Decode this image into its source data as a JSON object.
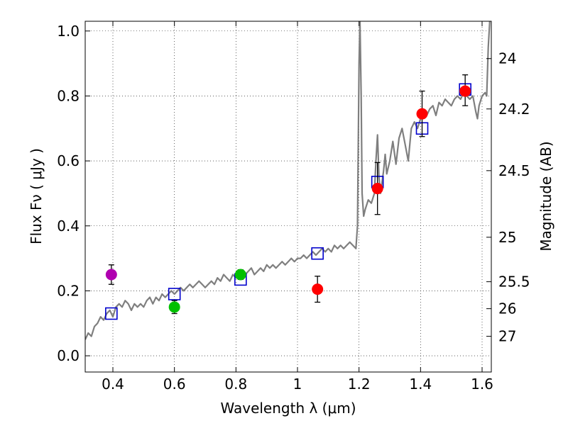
{
  "chart_data": {
    "type": "scatter",
    "title": "",
    "xlabel": "Wavelength  λ (μm)",
    "ylabel": "Flux  Fν  ( μJy )",
    "ylabel_right": "Magnitude (AB)",
    "xlim": [
      0.31,
      1.63
    ],
    "ylim": [
      -0.05,
      1.03
    ],
    "grid": true,
    "x_ticks": [
      0.4,
      0.6,
      0.8,
      1.0,
      1.2,
      1.4,
      1.6
    ],
    "x_tick_labels": [
      "0.4",
      "0.6",
      "0.8",
      "1",
      "1.2",
      "1.4",
      "1.6"
    ],
    "y_ticks": [
      0.0,
      0.2,
      0.4,
      0.6,
      0.8,
      1.0
    ],
    "y_tick_labels": [
      "0.0",
      "0.2",
      "0.4",
      "0.6",
      "0.8",
      "1.0"
    ],
    "right_ticks": [
      {
        "label": "24",
        "flux": 0.915
      },
      {
        "label": "24.2",
        "flux": 0.76
      },
      {
        "label": "24.5",
        "flux": 0.57
      },
      {
        "label": "25",
        "flux": 0.365
      },
      {
        "label": "25.5",
        "flux": 0.228
      },
      {
        "label": "26",
        "flux": 0.145
      },
      {
        "label": "27",
        "flux": 0.06
      }
    ],
    "colors": {
      "spectrum": "#7f7f7f",
      "model_square": "#0000cc",
      "purple": "#b000b0",
      "green": "#00c000",
      "red": "#ff0000",
      "errorbar": "#000000"
    },
    "series": [
      {
        "name": "observed-purple",
        "marker": "circle",
        "color": "#b000b0",
        "points": [
          {
            "x": 0.395,
            "y": 0.25,
            "ylo": 0.22,
            "yhi": 0.28
          }
        ]
      },
      {
        "name": "observed-green",
        "marker": "circle",
        "color": "#00c000",
        "points": [
          {
            "x": 0.6,
            "y": 0.15,
            "ylo": 0.13,
            "yhi": 0.17
          },
          {
            "x": 0.815,
            "y": 0.25,
            "ylo": 0.235,
            "yhi": 0.265
          }
        ]
      },
      {
        "name": "observed-red",
        "marker": "circle",
        "color": "#ff0000",
        "points": [
          {
            "x": 1.065,
            "y": 0.205,
            "ylo": 0.165,
            "yhi": 0.245
          },
          {
            "x": 1.26,
            "y": 0.515,
            "ylo": 0.435,
            "yhi": 0.595
          },
          {
            "x": 1.405,
            "y": 0.745,
            "ylo": 0.675,
            "yhi": 0.815
          },
          {
            "x": 1.545,
            "y": 0.815,
            "ylo": 0.77,
            "yhi": 0.865
          }
        ]
      },
      {
        "name": "model-photometry",
        "marker": "square-open",
        "color": "#0000cc",
        "points": [
          {
            "x": 0.395,
            "y": 0.13
          },
          {
            "x": 0.6,
            "y": 0.19
          },
          {
            "x": 0.815,
            "y": 0.235
          },
          {
            "x": 1.065,
            "y": 0.315
          },
          {
            "x": 1.26,
            "y": 0.535
          },
          {
            "x": 1.405,
            "y": 0.7
          },
          {
            "x": 1.545,
            "y": 0.82
          }
        ]
      },
      {
        "name": "model-spectrum",
        "marker": "line",
        "color": "#7f7f7f",
        "points": [
          [
            0.31,
            0.05
          ],
          [
            0.32,
            0.07
          ],
          [
            0.33,
            0.06
          ],
          [
            0.34,
            0.09
          ],
          [
            0.35,
            0.1
          ],
          [
            0.36,
            0.12
          ],
          [
            0.37,
            0.11
          ],
          [
            0.38,
            0.13
          ],
          [
            0.39,
            0.14
          ],
          [
            0.4,
            0.12
          ],
          [
            0.41,
            0.15
          ],
          [
            0.42,
            0.16
          ],
          [
            0.43,
            0.15
          ],
          [
            0.44,
            0.17
          ],
          [
            0.45,
            0.16
          ],
          [
            0.46,
            0.14
          ],
          [
            0.47,
            0.16
          ],
          [
            0.48,
            0.15
          ],
          [
            0.49,
            0.16
          ],
          [
            0.5,
            0.15
          ],
          [
            0.51,
            0.17
          ],
          [
            0.52,
            0.18
          ],
          [
            0.53,
            0.16
          ],
          [
            0.54,
            0.18
          ],
          [
            0.55,
            0.17
          ],
          [
            0.56,
            0.19
          ],
          [
            0.57,
            0.18
          ],
          [
            0.58,
            0.19
          ],
          [
            0.59,
            0.2
          ],
          [
            0.6,
            0.19
          ],
          [
            0.61,
            0.2
          ],
          [
            0.62,
            0.21
          ],
          [
            0.63,
            0.2
          ],
          [
            0.64,
            0.21
          ],
          [
            0.65,
            0.22
          ],
          [
            0.66,
            0.21
          ],
          [
            0.67,
            0.22
          ],
          [
            0.68,
            0.23
          ],
          [
            0.69,
            0.22
          ],
          [
            0.7,
            0.21
          ],
          [
            0.71,
            0.22
          ],
          [
            0.72,
            0.23
          ],
          [
            0.73,
            0.22
          ],
          [
            0.74,
            0.24
          ],
          [
            0.75,
            0.23
          ],
          [
            0.76,
            0.25
          ],
          [
            0.77,
            0.24
          ],
          [
            0.78,
            0.23
          ],
          [
            0.79,
            0.25
          ],
          [
            0.8,
            0.24
          ],
          [
            0.81,
            0.25
          ],
          [
            0.82,
            0.26
          ],
          [
            0.83,
            0.25
          ],
          [
            0.84,
            0.26
          ],
          [
            0.85,
            0.27
          ],
          [
            0.86,
            0.25
          ],
          [
            0.87,
            0.26
          ],
          [
            0.88,
            0.27
          ],
          [
            0.89,
            0.26
          ],
          [
            0.9,
            0.28
          ],
          [
            0.91,
            0.27
          ],
          [
            0.92,
            0.28
          ],
          [
            0.93,
            0.27
          ],
          [
            0.94,
            0.28
          ],
          [
            0.95,
            0.29
          ],
          [
            0.96,
            0.28
          ],
          [
            0.97,
            0.29
          ],
          [
            0.98,
            0.3
          ],
          [
            0.99,
            0.29
          ],
          [
            1.0,
            0.3
          ],
          [
            1.01,
            0.3
          ],
          [
            1.02,
            0.31
          ],
          [
            1.03,
            0.3
          ],
          [
            1.04,
            0.31
          ],
          [
            1.05,
            0.32
          ],
          [
            1.06,
            0.31
          ],
          [
            1.07,
            0.32
          ],
          [
            1.08,
            0.33
          ],
          [
            1.09,
            0.32
          ],
          [
            1.1,
            0.33
          ],
          [
            1.11,
            0.32
          ],
          [
            1.12,
            0.34
          ],
          [
            1.13,
            0.33
          ],
          [
            1.14,
            0.34
          ],
          [
            1.15,
            0.33
          ],
          [
            1.16,
            0.34
          ],
          [
            1.17,
            0.35
          ],
          [
            1.18,
            0.34
          ],
          [
            1.19,
            0.33
          ],
          [
            1.195,
            0.4
          ],
          [
            1.2,
            0.9
          ],
          [
            1.203,
            1.03
          ],
          [
            1.207,
            0.8
          ],
          [
            1.21,
            0.5
          ],
          [
            1.215,
            0.43
          ],
          [
            1.22,
            0.45
          ],
          [
            1.23,
            0.48
          ],
          [
            1.24,
            0.47
          ],
          [
            1.25,
            0.5
          ],
          [
            1.255,
            0.6
          ],
          [
            1.26,
            0.68
          ],
          [
            1.265,
            0.55
          ],
          [
            1.27,
            0.5
          ],
          [
            1.28,
            0.57
          ],
          [
            1.285,
            0.62
          ],
          [
            1.29,
            0.56
          ],
          [
            1.3,
            0.6
          ],
          [
            1.31,
            0.66
          ],
          [
            1.32,
            0.59
          ],
          [
            1.33,
            0.67
          ],
          [
            1.34,
            0.7
          ],
          [
            1.35,
            0.65
          ],
          [
            1.36,
            0.6
          ],
          [
            1.37,
            0.7
          ],
          [
            1.38,
            0.72
          ],
          [
            1.39,
            0.7
          ],
          [
            1.4,
            0.73
          ],
          [
            1.41,
            0.75
          ],
          [
            1.42,
            0.74
          ],
          [
            1.43,
            0.76
          ],
          [
            1.44,
            0.77
          ],
          [
            1.45,
            0.74
          ],
          [
            1.46,
            0.78
          ],
          [
            1.47,
            0.77
          ],
          [
            1.48,
            0.79
          ],
          [
            1.49,
            0.78
          ],
          [
            1.5,
            0.77
          ],
          [
            1.51,
            0.79
          ],
          [
            1.52,
            0.8
          ],
          [
            1.53,
            0.79
          ],
          [
            1.54,
            0.81
          ],
          [
            1.55,
            0.8
          ],
          [
            1.56,
            0.79
          ],
          [
            1.57,
            0.8
          ],
          [
            1.58,
            0.75
          ],
          [
            1.585,
            0.73
          ],
          [
            1.59,
            0.77
          ],
          [
            1.6,
            0.8
          ],
          [
            1.61,
            0.81
          ],
          [
            1.615,
            0.8
          ],
          [
            1.62,
            0.95
          ],
          [
            1.625,
            1.03
          ]
        ]
      }
    ]
  }
}
